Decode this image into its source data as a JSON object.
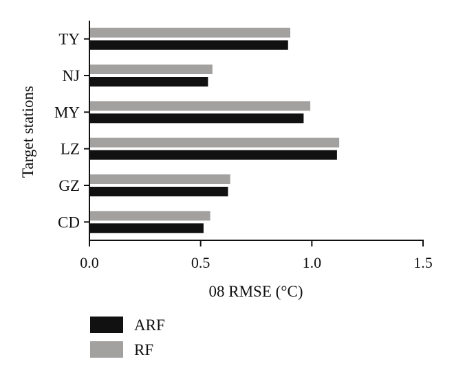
{
  "chart_data": {
    "type": "bar",
    "orientation": "horizontal",
    "categories": [
      "TY",
      "NJ",
      "MY",
      "LZ",
      "GZ",
      "CD"
    ],
    "series": [
      {
        "name": "RF",
        "color": "#a3a0a0",
        "values": [
          0.9,
          0.55,
          0.99,
          1.12,
          0.63,
          0.54
        ]
      },
      {
        "name": "ARF",
        "color": "#111111",
        "values": [
          0.89,
          0.53,
          0.96,
          1.11,
          0.62,
          0.51
        ]
      }
    ],
    "xlabel": "08 RMSE (°C)",
    "ylabel": "Target stations",
    "xlim": [
      0,
      1.5
    ],
    "xticks": [
      0.0,
      0.5,
      1.0,
      1.5
    ],
    "xtick_labels": [
      "0.0",
      "0.5",
      "1.0",
      "1.5"
    ],
    "grid": false,
    "legend": {
      "placement": "bottom-left",
      "entries": [
        {
          "label": "ARF",
          "color": "#111111"
        },
        {
          "label": "RF",
          "color": "#a3a0a0"
        }
      ]
    }
  }
}
